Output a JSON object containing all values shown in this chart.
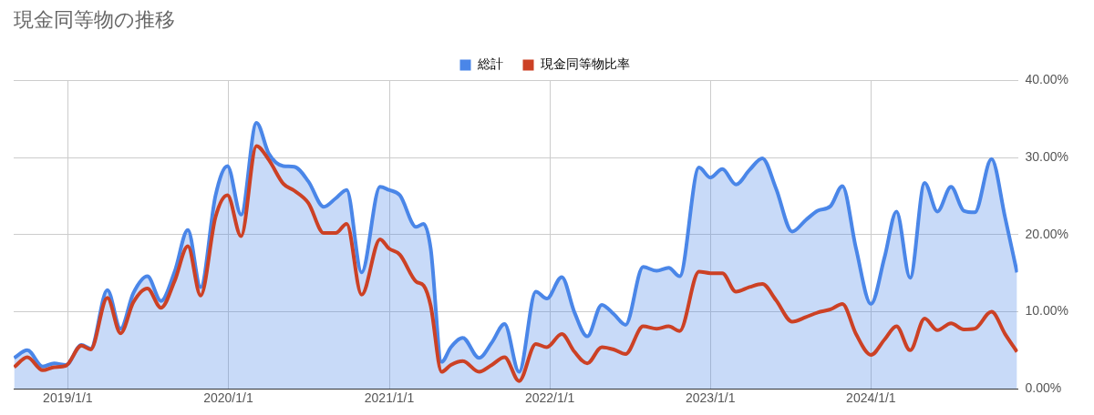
{
  "chart_data": {
    "type": "area",
    "title": "現金同等物の推移",
    "legend": "top",
    "grid": true,
    "marker": "none",
    "x": [
      "2018-09-01",
      "2018-10-01",
      "2018-11-05",
      "2018-12-01",
      "2018-12-28",
      "2019-02-01",
      "2019-02-22",
      "2019-04-01",
      "2019-05-01",
      "2019-05-30",
      "2019-07-01",
      "2019-08-01",
      "2019-09-01",
      "2019-10-01",
      "2019-10-30",
      "2019-12-03",
      "2019-12-30",
      "2020-01-30",
      "2020-03-05",
      "2020-04-02",
      "2020-05-05",
      "2020-05-30",
      "2020-07-01",
      "2020-08-05",
      "2020-09-01",
      "2020-09-26",
      "2020-10-30",
      "2020-12-11",
      "2020-12-31",
      "2021-01-25",
      "2021-03-03",
      "2021-03-20",
      "2021-04-05",
      "2021-04-30",
      "2021-05-21",
      "2021-06-17",
      "2021-07-24",
      "2021-08-22",
      "2021-09-20",
      "2021-10-23",
      "2021-11-30",
      "2021-12-25",
      "2022-01-28",
      "2022-02-26",
      "2022-03-27",
      "2022-04-29",
      "2022-05-26",
      "2022-06-22",
      "2022-08-01",
      "2022-09-01",
      "2022-09-28",
      "2022-10-23",
      "2022-12-06",
      "2023-01-01",
      "2023-01-28",
      "2023-02-28",
      "2023-03-31",
      "2023-04-29",
      "2023-05-30",
      "2023-07-06",
      "2023-08-06",
      "2023-09-02",
      "2023-10-01",
      "2023-10-28",
      "2023-11-28",
      "2024-01-01",
      "2024-02-01",
      "2024-02-28",
      "2024-03-30",
      "2024-05-02",
      "2024-05-31",
      "2024-07-01",
      "2024-07-30",
      "2024-08-24",
      "2024-10-01",
      "2024-11-01",
      "2024-11-28"
    ],
    "xlim": [
      "2018-08-31",
      "2024-11-30"
    ],
    "xticks": [
      {
        "value": "2019-01-01",
        "label": "2019/1/1"
      },
      {
        "value": "2020-01-01",
        "label": "2020/1/1"
      },
      {
        "value": "2021-01-01",
        "label": "2021/1/1"
      },
      {
        "value": "2022-01-01",
        "label": "2022/1/1"
      },
      {
        "value": "2023-01-01",
        "label": "2023/1/1"
      },
      {
        "value": "2024-01-01",
        "label": "2024/1/1"
      }
    ],
    "y2lim": [
      0,
      40
    ],
    "y2ticks": [
      {
        "value": 0,
        "label": "0.00%"
      },
      {
        "value": 10,
        "label": "10.00%"
      },
      {
        "value": 20,
        "label": "20.00%"
      },
      {
        "value": 30,
        "label": "30.00%"
      },
      {
        "value": 40,
        "label": "40.00%"
      }
    ],
    "series": [
      {
        "name": "総計",
        "axis": "y2",
        "color": "#4a86e8",
        "values": [
          4.0,
          5.0,
          2.9,
          3.3,
          3.1,
          5.7,
          5.2,
          12.8,
          7.8,
          12.4,
          14.6,
          11.4,
          15.2,
          20.6,
          13.2,
          25.1,
          28.9,
          22.6,
          34.5,
          30.5,
          28.9,
          28.8,
          26.9,
          23.6,
          24.7,
          25.8,
          15.1,
          26.2,
          25.8,
          25.1,
          21.0,
          21.4,
          18.2,
          3.5,
          5.4,
          6.6,
          4.0,
          6.0,
          8.4,
          2.2,
          12.6,
          11.7,
          14.5,
          9.9,
          6.8,
          10.9,
          9.7,
          8.3,
          15.8,
          15.3,
          15.7,
          14.6,
          28.7,
          27.4,
          28.5,
          26.5,
          28.4,
          29.9,
          26.0,
          20.4,
          21.9,
          23.1,
          23.7,
          26.3,
          18.2,
          11.0,
          17.1,
          23.0,
          14.4,
          26.7,
          23.0,
          26.2,
          23.1,
          22.9,
          29.8,
          22.2,
          15.1
        ]
      },
      {
        "name": "現金同等物比率",
        "type": "line",
        "axis": "y2",
        "color": "#cc4125",
        "values": [
          2.8,
          4.1,
          2.4,
          2.8,
          3.0,
          5.6,
          5.1,
          11.8,
          7.2,
          11.2,
          13.0,
          10.5,
          14.0,
          18.5,
          12.1,
          22.3,
          25.1,
          19.8,
          31.5,
          29.7,
          26.6,
          25.7,
          24.1,
          20.2,
          20.2,
          21.4,
          12.2,
          19.4,
          18.2,
          17.4,
          13.9,
          13.4,
          10.8,
          2.2,
          3.1,
          3.6,
          2.2,
          3.1,
          4.1,
          1.0,
          5.8,
          5.4,
          7.1,
          4.8,
          3.3,
          5.4,
          5.1,
          4.5,
          8.1,
          7.8,
          8.1,
          7.5,
          15.2,
          15.0,
          15.0,
          12.6,
          13.2,
          13.6,
          11.5,
          8.7,
          9.3,
          9.9,
          10.3,
          11.0,
          7.1,
          4.4,
          6.4,
          8.1,
          5.0,
          9.1,
          7.6,
          8.5,
          7.7,
          7.8,
          10.0,
          7.1,
          4.8
        ]
      }
    ]
  }
}
